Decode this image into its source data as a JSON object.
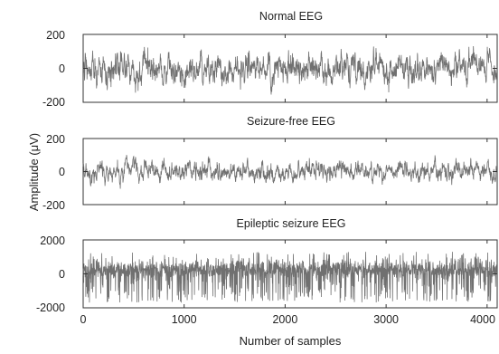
{
  "chart_data": {
    "type": "line",
    "ylabel": "Amplitude (μV)",
    "xlabel": "Number of samples",
    "xlim": [
      0,
      4100
    ],
    "x_ticks": [
      "0",
      "1000",
      "2000",
      "3000",
      "4000"
    ],
    "panels": [
      {
        "title": "Normal EEG",
        "ylim": [
          -200,
          200
        ],
        "y_ticks": [
          "200",
          "0",
          "-200"
        ],
        "series": [
          {
            "n_samples": 4097,
            "amplitude_range": [
              -170,
              170
            ],
            "typical_std": 48
          }
        ]
      },
      {
        "title": "Seizure-free EEG",
        "ylim": [
          -200,
          200
        ],
        "y_ticks": [
          "200",
          "0",
          "-200"
        ],
        "series": [
          {
            "n_samples": 4097,
            "amplitude_range": [
              -110,
              110
            ],
            "typical_std": 30
          }
        ]
      },
      {
        "title": "Epileptic seizure EEG",
        "ylim": [
          -2000,
          2000
        ],
        "y_ticks": [
          "2000",
          "0",
          "-2000"
        ],
        "series": [
          {
            "n_samples": 4097,
            "amplitude_range": [
              -1700,
              1300
            ],
            "typical_std": 450
          }
        ]
      }
    ]
  }
}
